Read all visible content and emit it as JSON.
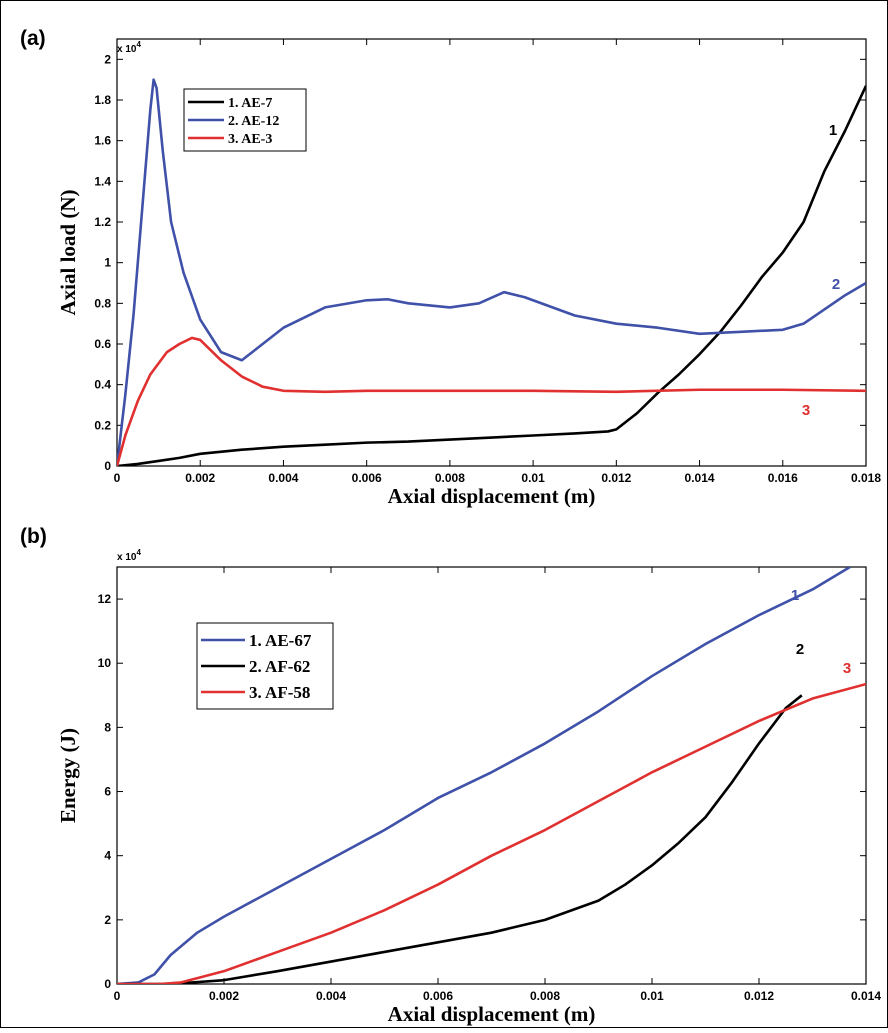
{
  "chart_data": [
    {
      "panel_label": "(a)",
      "type": "line",
      "xlabel": "Axial displacement (m)",
      "ylabel": "Axial load (N)",
      "y_multiplier": "x 10",
      "y_multiplier_exp": "4",
      "xlim": [
        0,
        0.018
      ],
      "ylim": [
        0,
        2.1
      ],
      "xticks": [
        0,
        0.002,
        0.004,
        0.006,
        0.008,
        0.01,
        0.012,
        0.014,
        0.016,
        0.018
      ],
      "xtick_labels": [
        "0",
        "0.002",
        "0.004",
        "0.006",
        "0.008",
        "0.01",
        "0.012",
        "0.014",
        "0.016",
        "0.018"
      ],
      "yticks": [
        0,
        0.2,
        0.4,
        0.6,
        0.8,
        1,
        1.2,
        1.4,
        1.6,
        1.8,
        2
      ],
      "ytick_labels": [
        "0",
        "0.2",
        "0.4",
        "0.6",
        "0.8",
        "1",
        "1.2",
        "1.4",
        "1.6",
        "1.8",
        "2"
      ],
      "legend_position": "top-left",
      "grid": false,
      "series": [
        {
          "name": "1. AE-7",
          "color": "#000000",
          "end_label": "1",
          "points": [
            [
              0,
              0
            ],
            [
              0.0005,
              0.01
            ],
            [
              0.001,
              0.025
            ],
            [
              0.0015,
              0.04
            ],
            [
              0.002,
              0.06
            ],
            [
              0.003,
              0.08
            ],
            [
              0.004,
              0.095
            ],
            [
              0.005,
              0.105
            ],
            [
              0.006,
              0.115
            ],
            [
              0.007,
              0.12
            ],
            [
              0.008,
              0.13
            ],
            [
              0.009,
              0.14
            ],
            [
              0.01,
              0.15
            ],
            [
              0.011,
              0.16
            ],
            [
              0.0118,
              0.17
            ],
            [
              0.012,
              0.18
            ],
            [
              0.0125,
              0.26
            ],
            [
              0.013,
              0.36
            ],
            [
              0.0135,
              0.45
            ],
            [
              0.014,
              0.55
            ],
            [
              0.0145,
              0.66
            ],
            [
              0.015,
              0.79
            ],
            [
              0.0155,
              0.93
            ],
            [
              0.016,
              1.05
            ],
            [
              0.0165,
              1.2
            ],
            [
              0.017,
              1.45
            ],
            [
              0.0175,
              1.65
            ],
            [
              0.018,
              1.87
            ]
          ]
        },
        {
          "name": "2. AE-12",
          "color": "#3f51a8",
          "end_label": "2",
          "points": [
            [
              0,
              0
            ],
            [
              0.0002,
              0.35
            ],
            [
              0.0004,
              0.75
            ],
            [
              0.0006,
              1.25
            ],
            [
              0.0008,
              1.75
            ],
            [
              0.00088,
              1.9
            ],
            [
              0.00095,
              1.86
            ],
            [
              0.0011,
              1.55
            ],
            [
              0.0013,
              1.2
            ],
            [
              0.0016,
              0.95
            ],
            [
              0.002,
              0.72
            ],
            [
              0.0025,
              0.56
            ],
            [
              0.003,
              0.52
            ],
            [
              0.0035,
              0.6
            ],
            [
              0.004,
              0.68
            ],
            [
              0.005,
              0.78
            ],
            [
              0.006,
              0.815
            ],
            [
              0.0065,
              0.82
            ],
            [
              0.007,
              0.8
            ],
            [
              0.008,
              0.78
            ],
            [
              0.0087,
              0.8
            ],
            [
              0.0093,
              0.855
            ],
            [
              0.0098,
              0.83
            ],
            [
              0.011,
              0.74
            ],
            [
              0.012,
              0.7
            ],
            [
              0.013,
              0.68
            ],
            [
              0.014,
              0.65
            ],
            [
              0.015,
              0.66
            ],
            [
              0.016,
              0.67
            ],
            [
              0.0165,
              0.7
            ],
            [
              0.017,
              0.77
            ],
            [
              0.0175,
              0.84
            ],
            [
              0.018,
              0.9
            ]
          ]
        },
        {
          "name": "3. AE-3",
          "color": "#e03030",
          "end_label": "3",
          "points": [
            [
              0,
              0
            ],
            [
              0.0002,
              0.15
            ],
            [
              0.0005,
              0.32
            ],
            [
              0.0008,
              0.45
            ],
            [
              0.0012,
              0.56
            ],
            [
              0.0015,
              0.6
            ],
            [
              0.0018,
              0.63
            ],
            [
              0.002,
              0.62
            ],
            [
              0.0025,
              0.52
            ],
            [
              0.003,
              0.44
            ],
            [
              0.0035,
              0.39
            ],
            [
              0.004,
              0.37
            ],
            [
              0.005,
              0.365
            ],
            [
              0.006,
              0.37
            ],
            [
              0.008,
              0.37
            ],
            [
              0.01,
              0.37
            ],
            [
              0.012,
              0.365
            ],
            [
              0.014,
              0.375
            ],
            [
              0.016,
              0.375
            ],
            [
              0.018,
              0.37
            ]
          ]
        }
      ]
    },
    {
      "panel_label": "(b)",
      "type": "line",
      "xlabel": "Axial displacement (m)",
      "ylabel": "Energy (J)",
      "y_multiplier": "x 10",
      "y_multiplier_exp": "4",
      "xlim": [
        0,
        0.014
      ],
      "ylim": [
        0,
        13
      ],
      "xticks": [
        0,
        0.002,
        0.004,
        0.006,
        0.008,
        0.01,
        0.012,
        0.014
      ],
      "xtick_labels": [
        "0",
        "0.002",
        "0.004",
        "0.006",
        "0.008",
        "0.01",
        "0.012",
        "0.014"
      ],
      "yticks": [
        0,
        2,
        4,
        6,
        8,
        10,
        12
      ],
      "ytick_labels": [
        "0",
        "2",
        "4",
        "6",
        "8",
        "10",
        "12"
      ],
      "legend_position": "top-left",
      "grid": false,
      "series": [
        {
          "name": "1. AE-67",
          "color": "#3f51a8",
          "end_label": "1",
          "points": [
            [
              0,
              0
            ],
            [
              0.0004,
              0.05
            ],
            [
              0.0007,
              0.3
            ],
            [
              0.001,
              0.9
            ],
            [
              0.0015,
              1.6
            ],
            [
              0.002,
              2.1
            ],
            [
              0.003,
              3.0
            ],
            [
              0.004,
              3.9
            ],
            [
              0.005,
              4.8
            ],
            [
              0.006,
              5.8
            ],
            [
              0.007,
              6.6
            ],
            [
              0.008,
              7.5
            ],
            [
              0.009,
              8.5
            ],
            [
              0.01,
              9.6
            ],
            [
              0.011,
              10.6
            ],
            [
              0.012,
              11.5
            ],
            [
              0.013,
              12.3
            ],
            [
              0.0137,
              13.0
            ]
          ]
        },
        {
          "name": "2. AF-62",
          "color": "#000000",
          "end_label": "2",
          "points": [
            [
              0,
              0
            ],
            [
              0.001,
              0.0
            ],
            [
              0.002,
              0.12
            ],
            [
              0.003,
              0.4
            ],
            [
              0.004,
              0.7
            ],
            [
              0.005,
              1.0
            ],
            [
              0.006,
              1.3
            ],
            [
              0.007,
              1.6
            ],
            [
              0.008,
              2.0
            ],
            [
              0.009,
              2.6
            ],
            [
              0.0095,
              3.1
            ],
            [
              0.01,
              3.7
            ],
            [
              0.0105,
              4.4
            ],
            [
              0.011,
              5.2
            ],
            [
              0.0115,
              6.3
            ],
            [
              0.012,
              7.5
            ],
            [
              0.0125,
              8.6
            ],
            [
              0.0128,
              9.0
            ]
          ]
        },
        {
          "name": "3. AF-58",
          "color": "#e03030",
          "end_label": "3",
          "points": [
            [
              0,
              0
            ],
            [
              0.0008,
              0.0
            ],
            [
              0.0012,
              0.05
            ],
            [
              0.002,
              0.4
            ],
            [
              0.003,
              1.0
            ],
            [
              0.004,
              1.6
            ],
            [
              0.005,
              2.3
            ],
            [
              0.006,
              3.1
            ],
            [
              0.007,
              4.0
            ],
            [
              0.008,
              4.8
            ],
            [
              0.009,
              5.7
            ],
            [
              0.01,
              6.6
            ],
            [
              0.011,
              7.4
            ],
            [
              0.012,
              8.2
            ],
            [
              0.013,
              8.9
            ],
            [
              0.014,
              9.35
            ]
          ]
        }
      ]
    }
  ]
}
